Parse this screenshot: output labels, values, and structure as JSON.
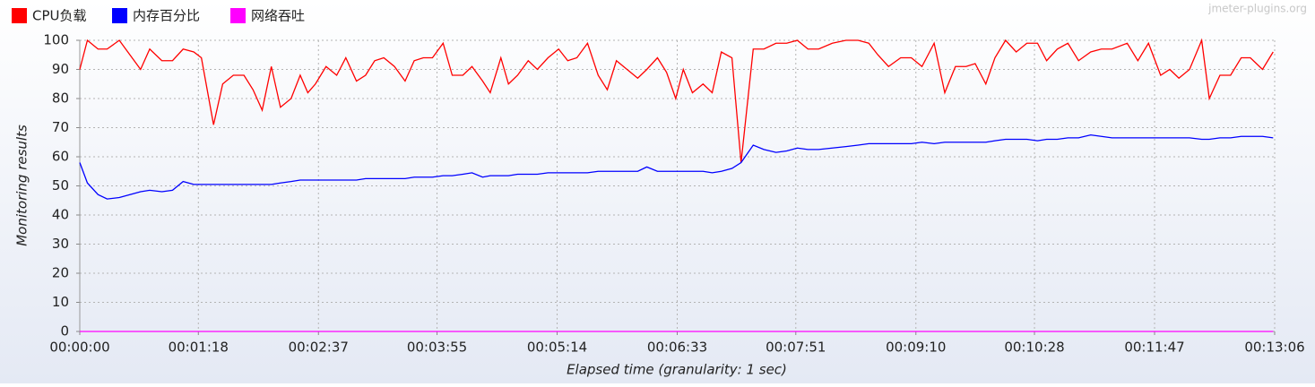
{
  "chart_data": {
    "type": "line",
    "watermark": "jmeter-plugins.org",
    "xlabel": "Elapsed time (granularity: 1 sec)",
    "ylabel": "Monitoring results",
    "xlim": [
      0,
      786
    ],
    "ylim": [
      0,
      100
    ],
    "xticks": [
      {
        "value": 0,
        "label": "00:00:00"
      },
      {
        "value": 78,
        "label": "00:01:18"
      },
      {
        "value": 157,
        "label": "00:02:37"
      },
      {
        "value": 235,
        "label": "00:03:55"
      },
      {
        "value": 314,
        "label": "00:05:14"
      },
      {
        "value": 393,
        "label": "00:06:33"
      },
      {
        "value": 471,
        "label": "00:07:51"
      },
      {
        "value": 550,
        "label": "00:09:10"
      },
      {
        "value": 628,
        "label": "00:10:28"
      },
      {
        "value": 707,
        "label": "00:11:47"
      },
      {
        "value": 786,
        "label": "00:13:06"
      }
    ],
    "yticks": [
      0,
      10,
      20,
      30,
      40,
      50,
      60,
      70,
      80,
      90,
      100
    ],
    "grid": true,
    "x": [
      0,
      5,
      12,
      18,
      26,
      33,
      40,
      46,
      54,
      61,
      68,
      75,
      80,
      88,
      94,
      101,
      108,
      114,
      120,
      126,
      132,
      139,
      145,
      150,
      155,
      162,
      169,
      175,
      182,
      188,
      194,
      200,
      207,
      214,
      220,
      226,
      232,
      239,
      245,
      252,
      258,
      265,
      270,
      277,
      282,
      288,
      295,
      301,
      308,
      315,
      321,
      327,
      334,
      341,
      347,
      353,
      360,
      367,
      373,
      380,
      386,
      392,
      397,
      403,
      410,
      416,
      422,
      429,
      435,
      443,
      450,
      458,
      465,
      472,
      479,
      486,
      495,
      504,
      512,
      519,
      525,
      532,
      540,
      547,
      554,
      562,
      569,
      576,
      583,
      589,
      596,
      602,
      609,
      616,
      623,
      630,
      636,
      643,
      650,
      657,
      665,
      672,
      679,
      689,
      696,
      703,
      711,
      717,
      723,
      730,
      738,
      743,
      750,
      757,
      764,
      770,
      778,
      785
    ],
    "series": [
      {
        "name": "CPU负载",
        "color": "#ff0000",
        "values": [
          90,
          100,
          97,
          97,
          100,
          95,
          90,
          97,
          93,
          93,
          97,
          96,
          94,
          71,
          85,
          88,
          88,
          83,
          76,
          91,
          77,
          80,
          88,
          82,
          85,
          91,
          88,
          94,
          86,
          88,
          93,
          94,
          91,
          86,
          93,
          94,
          94,
          99,
          88,
          88,
          91,
          86,
          82,
          94,
          85,
          88,
          93,
          90,
          94,
          97,
          93,
          94,
          99,
          88,
          83,
          93,
          90,
          87,
          90,
          94,
          89,
          80,
          90,
          82,
          85,
          82,
          96,
          94,
          58,
          97,
          97,
          99,
          99,
          100,
          97,
          97,
          99,
          100,
          100,
          99,
          95,
          91,
          94,
          94,
          91,
          99,
          82,
          91,
          91,
          92,
          85,
          94,
          100,
          96,
          99,
          99,
          93,
          97,
          99,
          93,
          96,
          97,
          97,
          99,
          93,
          99,
          88,
          90,
          87,
          90,
          100,
          80,
          88,
          88,
          94,
          94,
          90,
          96
        ]
      },
      {
        "name": "内存百分比",
        "color": "#0000ff",
        "values": [
          58,
          51,
          47,
          45.5,
          46,
          47,
          48,
          48.5,
          48,
          48.5,
          51.5,
          50.5,
          50.5,
          50.5,
          50.5,
          50.5,
          50.5,
          50.5,
          50.5,
          50.5,
          51,
          51.5,
          52,
          52,
          52,
          52,
          52,
          52,
          52,
          52.5,
          52.5,
          52.5,
          52.5,
          52.5,
          53,
          53,
          53,
          53.5,
          53.5,
          54,
          54.5,
          53,
          53.5,
          53.5,
          53.5,
          54,
          54,
          54,
          54.5,
          54.5,
          54.5,
          54.5,
          54.5,
          55,
          55,
          55,
          55,
          55,
          56.5,
          55,
          55,
          55,
          55,
          55,
          55,
          54.5,
          55,
          56,
          58,
          64,
          62.5,
          61.5,
          62,
          63,
          62.5,
          62.5,
          63,
          63.5,
          64,
          64.5,
          64.5,
          64.5,
          64.5,
          64.5,
          65,
          64.5,
          65,
          65,
          65,
          65,
          65,
          65.5,
          66,
          66,
          66,
          65.5,
          66,
          66,
          66.5,
          66.5,
          67.5,
          67,
          66.5,
          66.5,
          66.5,
          66.5,
          66.5,
          66.5,
          66.5,
          66.5,
          66,
          66,
          66.5,
          66.5,
          67,
          67,
          67,
          66.5
        ]
      },
      {
        "name": "网络吞吐",
        "color": "#ff00ff",
        "values": [
          0,
          0,
          0,
          0,
          0,
          0,
          0,
          0,
          0,
          0,
          0,
          0,
          0,
          0,
          0,
          0,
          0,
          0,
          0,
          0,
          0,
          0,
          0,
          0,
          0,
          0,
          0,
          0,
          0,
          0,
          0,
          0,
          0,
          0,
          0,
          0,
          0,
          0,
          0,
          0,
          0,
          0,
          0,
          0,
          0,
          0,
          0,
          0,
          0,
          0,
          0,
          0,
          0,
          0,
          0,
          0,
          0,
          0,
          0,
          0,
          0,
          0,
          0,
          0,
          0,
          0,
          0,
          0,
          0,
          0,
          0,
          0,
          0,
          0,
          0,
          0,
          0,
          0,
          0,
          0,
          0,
          0,
          0,
          0,
          0,
          0,
          0,
          0,
          0,
          0,
          0,
          0,
          0,
          0,
          0,
          0,
          0,
          0,
          0,
          0,
          0,
          0,
          0,
          0,
          0,
          0,
          0,
          0,
          0,
          0,
          0,
          0,
          0,
          0,
          0,
          0,
          0,
          0
        ]
      }
    ]
  }
}
